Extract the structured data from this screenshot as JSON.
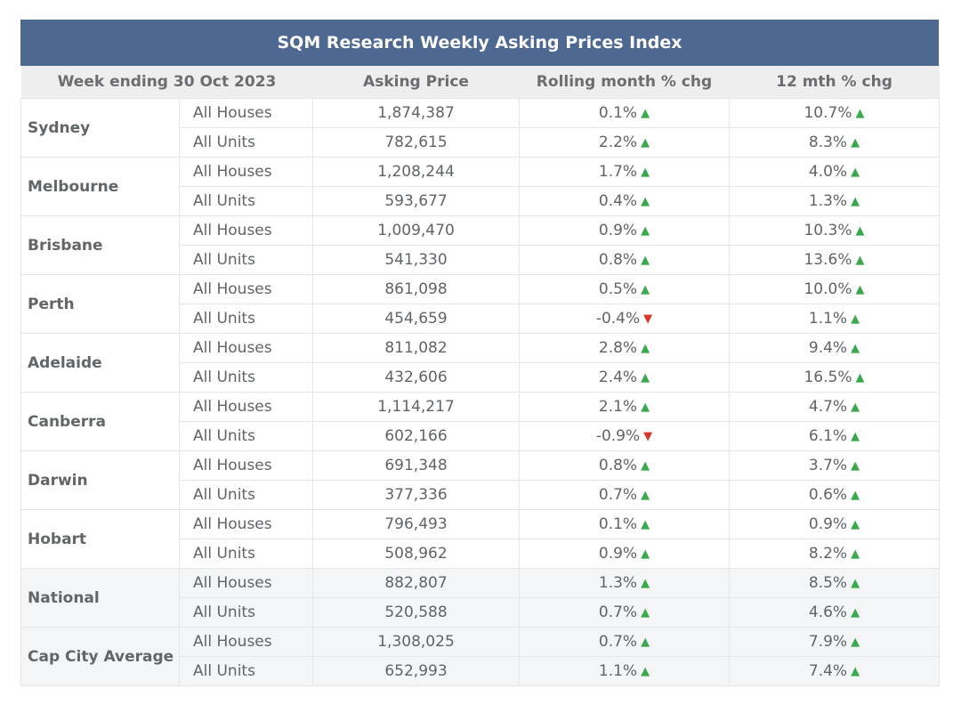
{
  "chart_data": {
    "type": "table",
    "title": "SQM Research Weekly Asking Prices Index",
    "header": {
      "week": "Week ending 30 Oct 2023",
      "price": "Asking Price",
      "rolling": "Rolling month % chg",
      "year": "12 mth % chg"
    },
    "colors": {
      "header_bar": "#4d6891",
      "up": "#3aa94e",
      "down": "#d9362a"
    },
    "rows": [
      {
        "city": "Sydney",
        "shaded": false,
        "types": [
          {
            "type": "All Houses",
            "price": "1,874,387",
            "rolling": "0.1%",
            "rolling_dir": "up",
            "year": "10.7%",
            "year_dir": "up"
          },
          {
            "type": "All Units",
            "price": "782,615",
            "rolling": "2.2%",
            "rolling_dir": "up",
            "year": "8.3%",
            "year_dir": "up"
          }
        ]
      },
      {
        "city": "Melbourne",
        "shaded": false,
        "types": [
          {
            "type": "All Houses",
            "price": "1,208,244",
            "rolling": "1.7%",
            "rolling_dir": "up",
            "year": "4.0%",
            "year_dir": "up"
          },
          {
            "type": "All Units",
            "price": "593,677",
            "rolling": "0.4%",
            "rolling_dir": "up",
            "year": "1.3%",
            "year_dir": "up"
          }
        ]
      },
      {
        "city": "Brisbane",
        "shaded": false,
        "types": [
          {
            "type": "All Houses",
            "price": "1,009,470",
            "rolling": "0.9%",
            "rolling_dir": "up",
            "year": "10.3%",
            "year_dir": "up"
          },
          {
            "type": "All Units",
            "price": "541,330",
            "rolling": "0.8%",
            "rolling_dir": "up",
            "year": "13.6%",
            "year_dir": "up"
          }
        ]
      },
      {
        "city": "Perth",
        "shaded": false,
        "types": [
          {
            "type": "All Houses",
            "price": "861,098",
            "rolling": "0.5%",
            "rolling_dir": "up",
            "year": "10.0%",
            "year_dir": "up"
          },
          {
            "type": "All Units",
            "price": "454,659",
            "rolling": "-0.4%",
            "rolling_dir": "down",
            "year": "1.1%",
            "year_dir": "up"
          }
        ]
      },
      {
        "city": "Adelaide",
        "shaded": false,
        "types": [
          {
            "type": "All Houses",
            "price": "811,082",
            "rolling": "2.8%",
            "rolling_dir": "up",
            "year": "9.4%",
            "year_dir": "up"
          },
          {
            "type": "All Units",
            "price": "432,606",
            "rolling": "2.4%",
            "rolling_dir": "up",
            "year": "16.5%",
            "year_dir": "up"
          }
        ]
      },
      {
        "city": "Canberra",
        "shaded": false,
        "types": [
          {
            "type": "All Houses",
            "price": "1,114,217",
            "rolling": "2.1%",
            "rolling_dir": "up",
            "year": "4.7%",
            "year_dir": "up"
          },
          {
            "type": "All Units",
            "price": "602,166",
            "rolling": "-0.9%",
            "rolling_dir": "down",
            "year": "6.1%",
            "year_dir": "up"
          }
        ]
      },
      {
        "city": "Darwin",
        "shaded": false,
        "types": [
          {
            "type": "All Houses",
            "price": "691,348",
            "rolling": "0.8%",
            "rolling_dir": "up",
            "year": "3.7%",
            "year_dir": "up"
          },
          {
            "type": "All Units",
            "price": "377,336",
            "rolling": "0.7%",
            "rolling_dir": "up",
            "year": "0.6%",
            "year_dir": "up"
          }
        ]
      },
      {
        "city": "Hobart",
        "shaded": false,
        "types": [
          {
            "type": "All Houses",
            "price": "796,493",
            "rolling": "0.1%",
            "rolling_dir": "up",
            "year": "0.9%",
            "year_dir": "up"
          },
          {
            "type": "All Units",
            "price": "508,962",
            "rolling": "0.9%",
            "rolling_dir": "up",
            "year": "8.2%",
            "year_dir": "up"
          }
        ]
      },
      {
        "city": "National",
        "shaded": true,
        "types": [
          {
            "type": "All Houses",
            "price": "882,807",
            "rolling": "1.3%",
            "rolling_dir": "up",
            "year": "8.5%",
            "year_dir": "up"
          },
          {
            "type": "All Units",
            "price": "520,588",
            "rolling": "0.7%",
            "rolling_dir": "up",
            "year": "4.6%",
            "year_dir": "up"
          }
        ]
      },
      {
        "city": "Cap City Average",
        "shaded": true,
        "types": [
          {
            "type": "All Houses",
            "price": "1,308,025",
            "rolling": "0.7%",
            "rolling_dir": "up",
            "year": "7.9%",
            "year_dir": "up"
          },
          {
            "type": "All Units",
            "price": "652,993",
            "rolling": "1.1%",
            "rolling_dir": "up",
            "year": "7.4%",
            "year_dir": "up"
          }
        ]
      }
    ]
  }
}
